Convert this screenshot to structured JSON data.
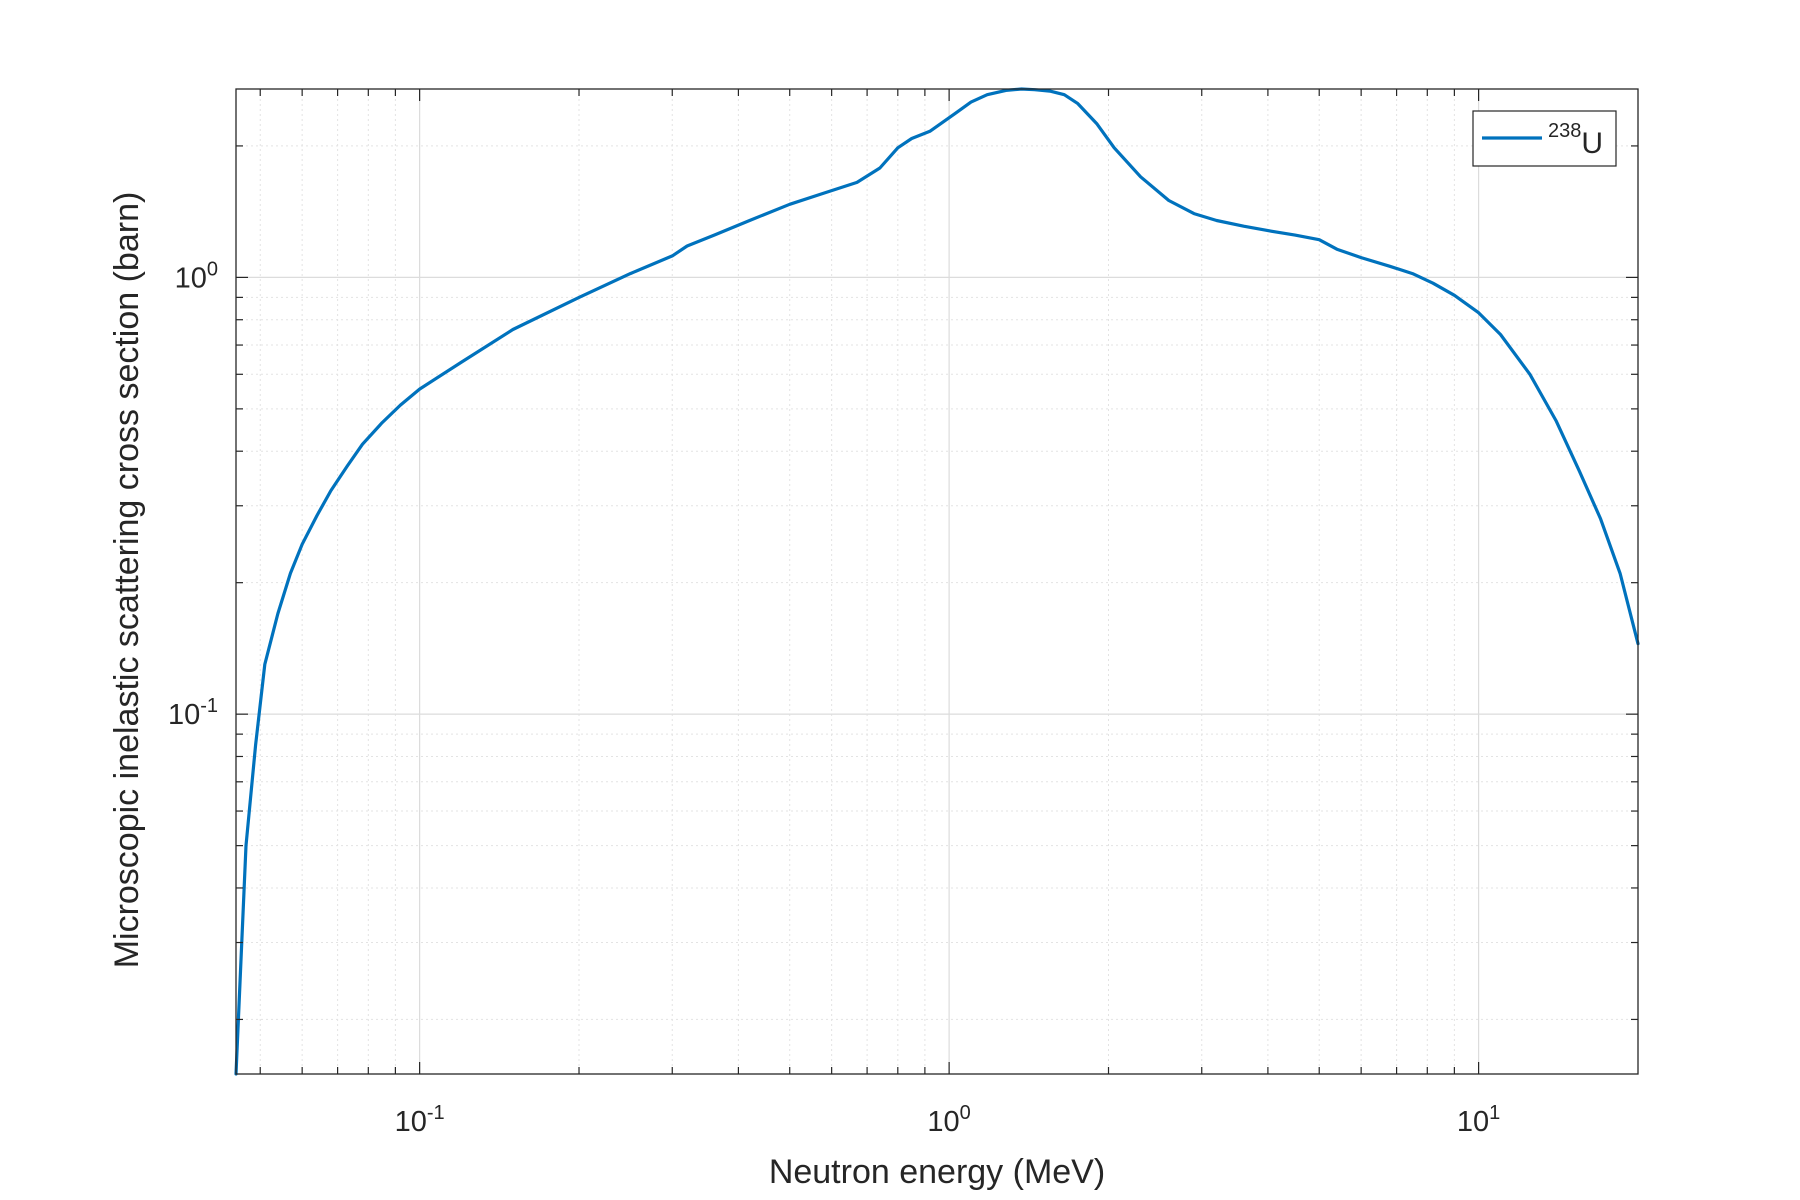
{
  "chart_data": {
    "type": "line",
    "title": "",
    "xlabel": "Neutron energy (MeV)",
    "ylabel": "Microscopic inelastic scattering cross section (barn)",
    "x_scale": "log",
    "y_scale": "log",
    "xlim": [
      0.045,
      20
    ],
    "ylim": [
      0.015,
      2.7
    ],
    "x_ticks": [
      {
        "value": 0.1,
        "base": "10",
        "exp": "-1"
      },
      {
        "value": 1,
        "base": "10",
        "exp": "0"
      },
      {
        "value": 10,
        "base": "10",
        "exp": "1"
      }
    ],
    "y_ticks": [
      {
        "value": 0.1,
        "base": "10",
        "exp": "-1"
      },
      {
        "value": 1,
        "base": "10",
        "exp": "0"
      }
    ],
    "grid": true,
    "minor_grid": true,
    "legend_position": "top-right",
    "series": [
      {
        "name_base": "U",
        "name_sup": "238",
        "color": "#0072BD",
        "x": [
          0.045,
          0.047,
          0.049,
          0.051,
          0.054,
          0.057,
          0.06,
          0.064,
          0.068,
          0.073,
          0.078,
          0.085,
          0.092,
          0.1,
          0.12,
          0.15,
          0.2,
          0.25,
          0.3,
          0.32,
          0.36,
          0.42,
          0.5,
          0.58,
          0.67,
          0.74,
          0.8,
          0.85,
          0.92,
          0.97,
          1.03,
          1.1,
          1.18,
          1.28,
          1.37,
          1.45,
          1.55,
          1.65,
          1.75,
          1.9,
          2.05,
          2.3,
          2.6,
          2.9,
          3.2,
          3.6,
          4.0,
          4.5,
          5.0,
          5.4,
          6.0,
          6.8,
          7.5,
          8.2,
          9.0,
          10.0,
          11.0,
          12.5,
          14.0,
          15.5,
          17.0,
          18.5,
          20.0
        ],
        "y": [
          0.015,
          0.05,
          0.085,
          0.13,
          0.17,
          0.21,
          0.245,
          0.285,
          0.325,
          0.37,
          0.415,
          0.465,
          0.51,
          0.555,
          0.64,
          0.76,
          0.9,
          1.02,
          1.12,
          1.18,
          1.25,
          1.35,
          1.47,
          1.56,
          1.65,
          1.78,
          1.98,
          2.08,
          2.16,
          2.26,
          2.38,
          2.52,
          2.62,
          2.68,
          2.7,
          2.69,
          2.67,
          2.62,
          2.5,
          2.25,
          1.98,
          1.7,
          1.5,
          1.4,
          1.35,
          1.31,
          1.28,
          1.25,
          1.22,
          1.16,
          1.11,
          1.06,
          1.02,
          0.97,
          0.91,
          0.83,
          0.74,
          0.6,
          0.47,
          0.36,
          0.28,
          0.21,
          0.145
        ]
      }
    ]
  }
}
